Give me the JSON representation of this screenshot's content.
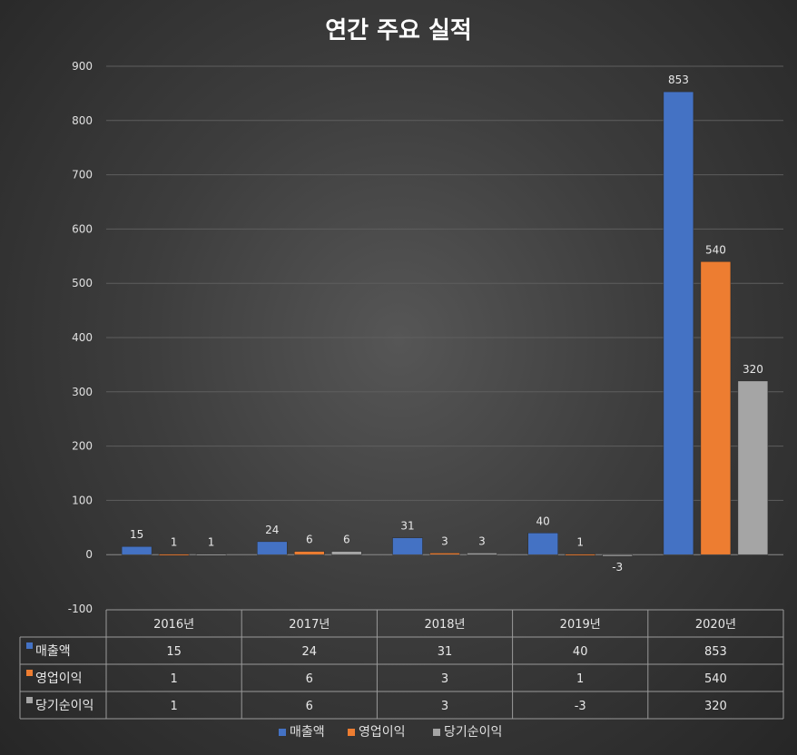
{
  "chart_data": {
    "type": "bar",
    "title": "연간 주요 실적",
    "categories": [
      "2016년",
      "2017년",
      "2018년",
      "2019년",
      "2020년"
    ],
    "series": [
      {
        "name": "매출액",
        "values": [
          15,
          24,
          31,
          40,
          853
        ],
        "color": "#4472c4"
      },
      {
        "name": "영업이익",
        "values": [
          1,
          6,
          3,
          1,
          540
        ],
        "color": "#ed7d31"
      },
      {
        "name": "당기순이익",
        "values": [
          1,
          6,
          3,
          -3,
          320
        ],
        "color": "#a5a5a5"
      }
    ],
    "ylim": [
      -100,
      900
    ],
    "yticks": [
      900,
      800,
      700,
      600,
      500,
      400,
      300,
      200,
      100,
      0,
      -100
    ],
    "grid": true,
    "data_table": true,
    "legend_position": "bottom"
  }
}
